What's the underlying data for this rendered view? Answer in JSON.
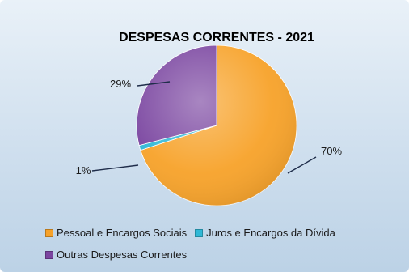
{
  "chart_data": {
    "type": "pie",
    "title": "DESPESAS CORRENTES - 2021",
    "slices": [
      {
        "label": "Pessoal e Encargos Sociais",
        "value": 70,
        "value_label": "70%",
        "color": "#f7a229"
      },
      {
        "label": "Juros e Encargos da Dívida",
        "value": 1,
        "value_label": "1%",
        "color": "#2fb8d6"
      },
      {
        "label": "Outras Despesas Correntes",
        "value": 29,
        "value_label": "29%",
        "color": "#7a45a0"
      }
    ],
    "legend_position": "bottom",
    "start_angle": "12 o'clock, clockwise"
  }
}
